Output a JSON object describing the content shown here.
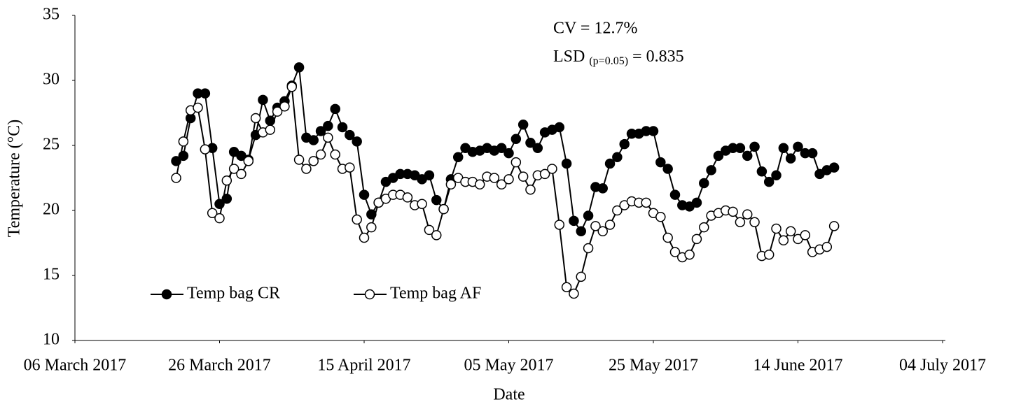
{
  "chart_data": {
    "type": "line",
    "y_label": "Temperature (°C)",
    "x_label": "Date",
    "annotations": [
      "CV = 12.7%",
      {
        "main": "LSD",
        "sub": "(p=0.05)",
        "tail": "= 0.835"
      }
    ],
    "x": [
      "2017-03-20",
      "2017-03-21",
      "2017-03-22",
      "2017-03-23",
      "2017-03-24",
      "2017-03-25",
      "2017-03-26",
      "2017-03-27",
      "2017-03-28",
      "2017-03-29",
      "2017-03-30",
      "2017-03-31",
      "2017-04-01",
      "2017-04-02",
      "2017-04-03",
      "2017-04-04",
      "2017-04-05",
      "2017-04-06",
      "2017-04-07",
      "2017-04-08",
      "2017-04-09",
      "2017-04-10",
      "2017-04-11",
      "2017-04-12",
      "2017-04-13",
      "2017-04-14",
      "2017-04-15",
      "2017-04-16",
      "2017-04-17",
      "2017-04-18",
      "2017-04-19",
      "2017-04-20",
      "2017-04-21",
      "2017-04-22",
      "2017-04-23",
      "2017-04-24",
      "2017-04-25",
      "2017-04-26",
      "2017-04-27",
      "2017-04-28",
      "2017-04-29",
      "2017-04-30",
      "2017-05-01",
      "2017-05-02",
      "2017-05-03",
      "2017-05-04",
      "2017-05-05",
      "2017-05-06",
      "2017-05-07",
      "2017-05-08",
      "2017-05-09",
      "2017-05-10",
      "2017-05-11",
      "2017-05-12",
      "2017-05-13",
      "2017-05-14",
      "2017-05-15",
      "2017-05-16",
      "2017-05-17",
      "2017-05-18",
      "2017-05-19",
      "2017-05-20",
      "2017-05-21",
      "2017-05-22",
      "2017-05-23",
      "2017-05-24",
      "2017-05-25",
      "2017-05-26",
      "2017-05-27",
      "2017-05-28",
      "2017-05-29",
      "2017-05-30",
      "2017-05-31",
      "2017-06-01",
      "2017-06-02",
      "2017-06-03",
      "2017-06-04",
      "2017-06-05",
      "2017-06-06",
      "2017-06-07",
      "2017-06-08",
      "2017-06-09",
      "2017-06-10",
      "2017-06-11",
      "2017-06-12",
      "2017-06-13",
      "2017-06-14",
      "2017-06-15",
      "2017-06-16",
      "2017-06-17",
      "2017-06-18",
      "2017-06-19"
    ],
    "series": [
      {
        "name": "Temp bag CR",
        "color": "#000000",
        "marker_fill": "#000000",
        "values": [
          23.8,
          24.2,
          27.1,
          29.0,
          29.0,
          24.8,
          20.5,
          20.9,
          24.5,
          24.2,
          23.9,
          25.8,
          28.5,
          26.9,
          27.9,
          28.4,
          29.6,
          31.0,
          25.6,
          25.4,
          26.1,
          26.5,
          27.8,
          26.4,
          25.8,
          25.3,
          21.2,
          19.7,
          20.6,
          22.2,
          22.5,
          22.8,
          22.8,
          22.7,
          22.4,
          22.7,
          20.8,
          20.1,
          22.4,
          24.1,
          24.8,
          24.5,
          24.6,
          24.8,
          24.6,
          24.8,
          24.4,
          25.5,
          26.6,
          25.2,
          24.8,
          26.0,
          26.2,
          26.4,
          23.6,
          19.2,
          18.4,
          19.6,
          21.8,
          21.7,
          23.6,
          24.1,
          25.1,
          25.9,
          25.9,
          26.1,
          26.1,
          23.7,
          23.2,
          21.2,
          20.4,
          20.3,
          20.6,
          22.1,
          23.1,
          24.2,
          24.6,
          24.8,
          24.8,
          24.2,
          24.9,
          23.0,
          22.2,
          22.7,
          24.8,
          24.0,
          24.9,
          24.4,
          24.4,
          22.8,
          23.1,
          23.3
        ]
      },
      {
        "name": "Temp bag AF",
        "color": "#000000",
        "marker_fill": "#ffffff",
        "values": [
          22.5,
          25.3,
          27.7,
          27.9,
          24.7,
          19.8,
          19.4,
          22.3,
          23.2,
          22.8,
          23.8,
          27.1,
          26.0,
          26.2,
          27.6,
          28.0,
          29.5,
          23.9,
          23.2,
          23.8,
          24.3,
          25.6,
          24.3,
          23.2,
          23.3,
          19.3,
          17.9,
          18.7,
          20.6,
          20.9,
          21.2,
          21.2,
          21.0,
          20.4,
          20.5,
          18.5,
          18.1,
          20.1,
          22.0,
          22.5,
          22.2,
          22.2,
          22.0,
          22.6,
          22.5,
          22.0,
          22.4,
          23.7,
          22.6,
          21.6,
          22.7,
          22.8,
          23.2,
          18.9,
          14.1,
          13.6,
          14.9,
          17.1,
          18.8,
          18.4,
          18.9,
          20.0,
          20.4,
          20.7,
          20.6,
          20.6,
          19.8,
          19.5,
          17.9,
          16.8,
          16.4,
          16.6,
          17.8,
          18.7,
          19.6,
          19.8,
          20.0,
          19.9,
          19.1,
          19.7,
          19.1,
          16.5,
          16.6,
          18.6,
          17.7,
          18.4,
          17.8,
          18.1,
          16.8,
          17.0,
          17.2,
          18.8
        ]
      }
    ],
    "xlim": [
      "2017-03-06",
      "2017-07-04"
    ],
    "xticks": [
      {
        "value": "2017-03-06",
        "label": "06 March 2017"
      },
      {
        "value": "2017-03-26",
        "label": "26 March 2017"
      },
      {
        "value": "2017-04-15",
        "label": "15 April 2017"
      },
      {
        "value": "2017-05-05",
        "label": "05 May 2017"
      },
      {
        "value": "2017-05-25",
        "label": "25 May 2017"
      },
      {
        "value": "2017-06-14",
        "label": "14 June 2017"
      },
      {
        "value": "2017-07-04",
        "label": "04 July 2017"
      }
    ],
    "ylim": [
      10,
      35
    ],
    "yticks": [
      10,
      15,
      20,
      25,
      30,
      35
    ],
    "grid": false,
    "legend": "lower left"
  }
}
